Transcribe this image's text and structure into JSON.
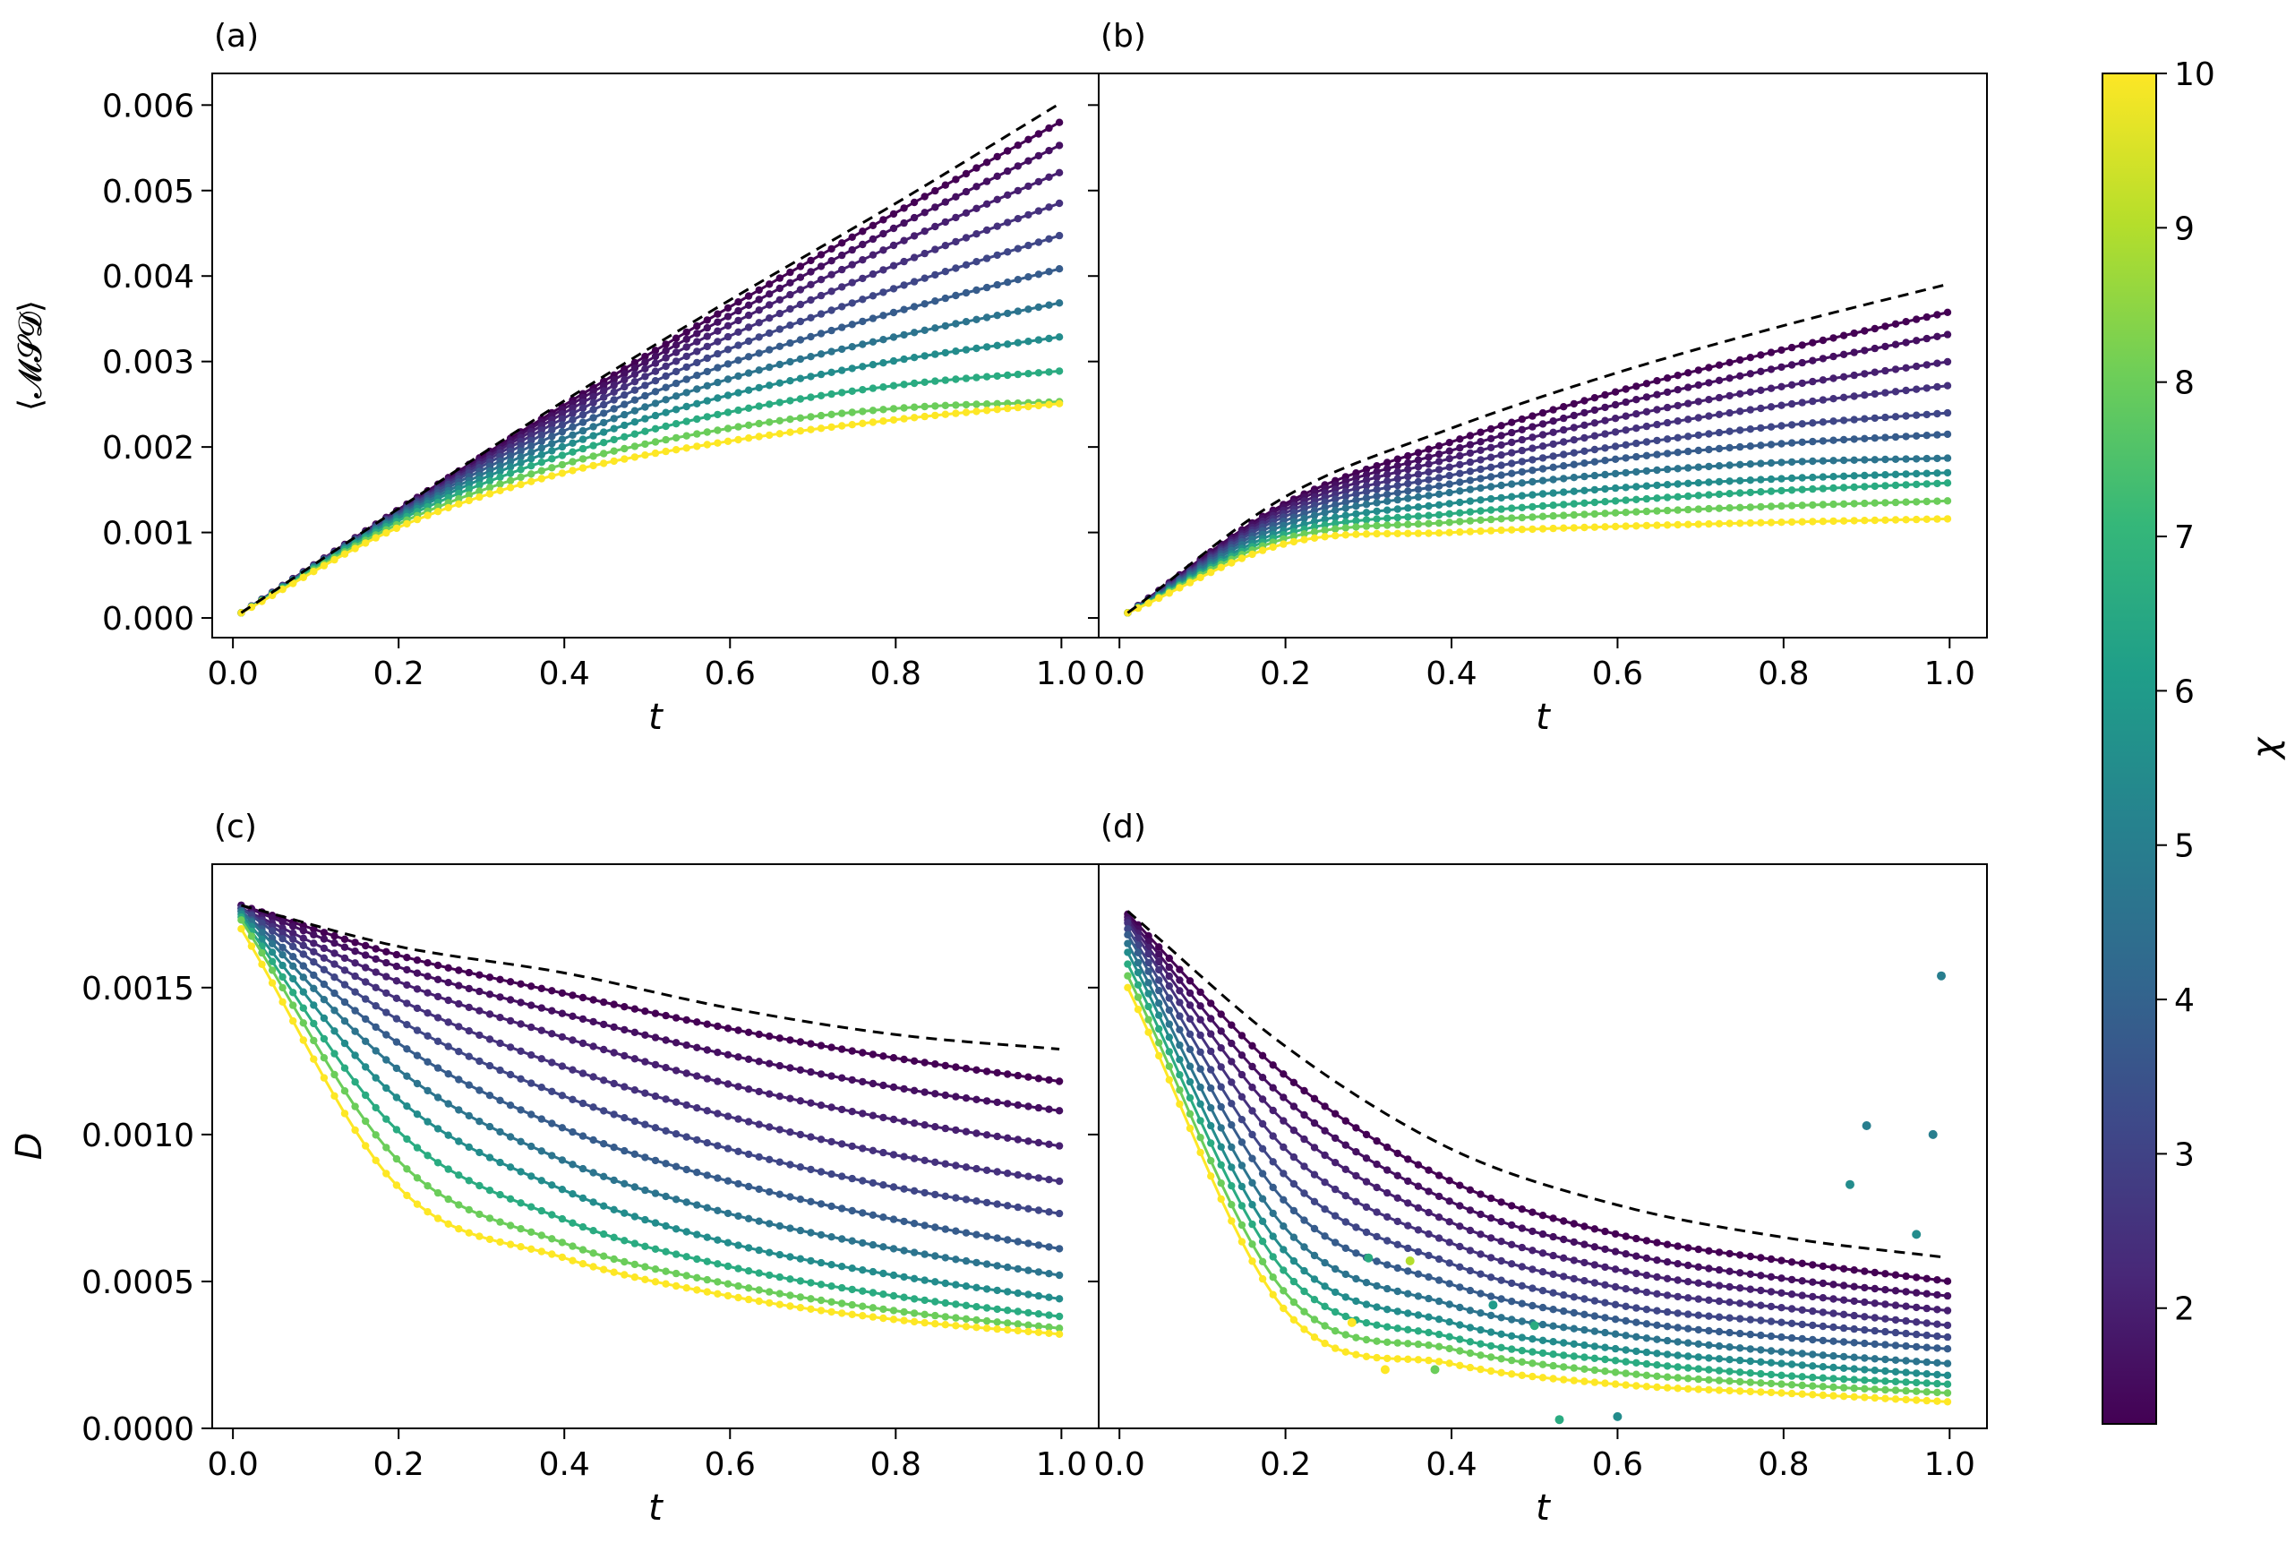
{
  "colors": {
    "viridis_stops": [
      "#440154",
      "#482878",
      "#3e4989",
      "#31688e",
      "#26828e",
      "#1f9e89",
      "#35b779",
      "#6ece58",
      "#b5de2b",
      "#fde725"
    ],
    "reference": "#000000"
  },
  "colorbar": {
    "label": "χ",
    "min": 1.25,
    "max": 10,
    "ticks": [
      "2",
      "3",
      "4",
      "5",
      "6",
      "7",
      "8",
      "9",
      "10"
    ],
    "tick_values": [
      2,
      3,
      4,
      5,
      6,
      7,
      8,
      9,
      10
    ]
  },
  "chi_values": [
    1.25,
    1.6,
    2.0,
    2.5,
    3.1,
    3.8,
    4.6,
    5.5,
    6.6,
    8.0,
    10.0
  ],
  "chart_data": [
    {
      "id": "a",
      "panel_label": "(a)",
      "type": "line",
      "xlabel": "t",
      "ylabel": "⟨𝓜𝓢𝓓⟩",
      "xlim": [
        -0.025,
        1.045
      ],
      "ylim": [
        -0.00023,
        0.00637
      ],
      "xticks": [
        "0.0",
        "0.2",
        "0.4",
        "0.6",
        "0.8",
        "1.0"
      ],
      "xtick_values": [
        0,
        0.2,
        0.4,
        0.6,
        0.8,
        1.0
      ],
      "yticks": [
        "0.000",
        "0.001",
        "0.002",
        "0.003",
        "0.004",
        "0.005",
        "0.006"
      ],
      "ytick_values": [
        0,
        0.001,
        0.002,
        0.003,
        0.004,
        0.005,
        0.006
      ],
      "x": [
        0.01,
        0.2,
        0.4,
        0.6,
        0.8,
        1.0
      ],
      "reference_line": [
        6e-05,
        0.00128,
        0.00254,
        0.00372,
        0.00485,
        0.00603
      ],
      "series": [
        {
          "chi": 1.25,
          "values": [
            6e-05,
            0.00127,
            0.00249,
            0.00364,
            0.00474,
            0.00581
          ]
        },
        {
          "chi": 1.6,
          "values": [
            6e-05,
            0.00126,
            0.00245,
            0.00354,
            0.00457,
            0.00554
          ]
        },
        {
          "chi": 2.0,
          "values": [
            6e-05,
            0.00125,
            0.0024,
            0.00343,
            0.00437,
            0.00522
          ]
        },
        {
          "chi": 2.5,
          "values": [
            6e-05,
            0.00124,
            0.00234,
            0.0033,
            0.00413,
            0.00486
          ]
        },
        {
          "chi": 3.1,
          "values": [
            6e-05,
            0.00123,
            0.00227,
            0.00315,
            0.00386,
            0.00448
          ]
        },
        {
          "chi": 3.8,
          "values": [
            6e-05,
            0.00121,
            0.00219,
            0.00298,
            0.00358,
            0.00409
          ]
        },
        {
          "chi": 4.6,
          "values": [
            6e-05,
            0.00119,
            0.0021,
            0.0028,
            0.00329,
            0.00369
          ]
        },
        {
          "chi": 5.5,
          "values": [
            6e-05,
            0.00117,
            0.00201,
            0.00261,
            0.00301,
            0.00329
          ]
        },
        {
          "chi": 6.6,
          "values": [
            6e-05,
            0.00114,
            0.00191,
            0.00241,
            0.00272,
            0.00289
          ]
        },
        {
          "chi": 8.0,
          "values": [
            6e-05,
            0.0011,
            0.0018,
            0.00222,
            0.00245,
            0.00253
          ]
        },
        {
          "chi": 10.0,
          "values": [
            6e-05,
            0.00106,
            0.0017,
            0.00207,
            0.00232,
            0.00251
          ]
        }
      ]
    },
    {
      "id": "b",
      "panel_label": "(b)",
      "type": "line",
      "xlabel": "t",
      "ylabel": "",
      "xlim": [
        -0.025,
        1.045
      ],
      "ylim": [
        -0.00023,
        0.00637
      ],
      "xticks": [
        "0.0",
        "0.2",
        "0.4",
        "0.6",
        "0.8",
        "1.0"
      ],
      "xtick_values": [
        0,
        0.2,
        0.4,
        0.6,
        0.8,
        1.0
      ],
      "yticks": [],
      "ytick_values": [],
      "x": [
        0.01,
        0.2,
        0.4,
        0.6,
        0.8,
        1.0
      ],
      "reference_line": [
        6e-05,
        0.00142,
        0.00222,
        0.00287,
        0.00342,
        0.00391
      ],
      "series": [
        {
          "chi": 1.25,
          "values": [
            6e-05,
            0.00134,
            0.00206,
            0.00265,
            0.00314,
            0.00358
          ]
        },
        {
          "chi": 1.6,
          "values": [
            6e-05,
            0.00131,
            0.00196,
            0.0025,
            0.00294,
            0.00332
          ]
        },
        {
          "chi": 2.0,
          "values": [
            6e-05,
            0.00127,
            0.00187,
            0.00234,
            0.00271,
            0.003
          ]
        },
        {
          "chi": 2.5,
          "values": [
            6e-05,
            0.00123,
            0.00177,
            0.00218,
            0.00249,
            0.00272
          ]
        },
        {
          "chi": 3.1,
          "values": [
            6e-05,
            0.00119,
            0.00167,
            0.00201,
            0.00225,
            0.0024
          ]
        },
        {
          "chi": 3.8,
          "values": [
            6e-05,
            0.00114,
            0.00157,
            0.00186,
            0.00204,
            0.00215
          ]
        },
        {
          "chi": 4.6,
          "values": [
            6e-05,
            0.00109,
            0.00147,
            0.00169,
            0.00182,
            0.00187
          ]
        },
        {
          "chi": 5.5,
          "values": [
            6e-05,
            0.00103,
            0.00134,
            0.00152,
            0.00163,
            0.0017
          ]
        },
        {
          "chi": 6.6,
          "values": [
            6e-05,
            0.00098,
            0.00122,
            0.00137,
            0.00149,
            0.00158
          ]
        },
        {
          "chi": 8.0,
          "values": [
            6e-05,
            0.00093,
            0.00112,
            0.00123,
            0.00131,
            0.00137
          ]
        },
        {
          "chi": 10.0,
          "values": [
            6e-05,
            0.00087,
            0.001,
            0.00107,
            0.00112,
            0.00116
          ]
        }
      ]
    },
    {
      "id": "c",
      "panel_label": "(c)",
      "type": "line",
      "xlabel": "t",
      "ylabel": "D",
      "xlim": [
        -0.025,
        1.045
      ],
      "ylim": [
        0,
        0.00192
      ],
      "xticks": [
        "0.0",
        "0.2",
        "0.4",
        "0.6",
        "0.8",
        "1.0"
      ],
      "xtick_values": [
        0,
        0.2,
        0.4,
        0.6,
        0.8,
        1.0
      ],
      "yticks": [
        "0.0000",
        "0.0005",
        "0.0010",
        "0.0015"
      ],
      "ytick_values": [
        0,
        0.0005,
        0.001,
        0.0015
      ],
      "x": [
        0.01,
        0.2,
        0.4,
        0.6,
        0.8,
        1.0
      ],
      "reference_line": [
        0.00178,
        0.00164,
        0.00155,
        0.00143,
        0.00134,
        0.00129
      ],
      "series": [
        {
          "chi": 1.25,
          "values": [
            0.00178,
            0.00161,
            0.00148,
            0.00136,
            0.00126,
            0.00118
          ]
        },
        {
          "chi": 1.6,
          "values": [
            0.00178,
            0.00157,
            0.00141,
            0.00127,
            0.00116,
            0.00108
          ]
        },
        {
          "chi": 2.0,
          "values": [
            0.00177,
            0.00152,
            0.00133,
            0.00117,
            0.00105,
            0.00096
          ]
        },
        {
          "chi": 2.5,
          "values": [
            0.00177,
            0.00146,
            0.00123,
            0.00106,
            0.00093,
            0.00084
          ]
        },
        {
          "chi": 3.1,
          "values": [
            0.00177,
            0.00139,
            0.00113,
            0.00095,
            0.00082,
            0.00073
          ]
        },
        {
          "chi": 3.8,
          "values": [
            0.00176,
            0.00131,
            0.00102,
            0.00084,
            0.00071,
            0.00061
          ]
        },
        {
          "chi": 4.6,
          "values": [
            0.00176,
            0.00122,
            0.00091,
            0.00073,
            0.00061,
            0.00052
          ]
        },
        {
          "chi": 5.5,
          "values": [
            0.00175,
            0.00112,
            0.00081,
            0.00063,
            0.00052,
            0.00044
          ]
        },
        {
          "chi": 6.6,
          "values": [
            0.00174,
            0.00101,
            0.00071,
            0.00055,
            0.00045,
            0.00038
          ]
        },
        {
          "chi": 8.0,
          "values": [
            0.00173,
            0.00091,
            0.00063,
            0.00049,
            0.0004,
            0.00034
          ]
        },
        {
          "chi": 10.0,
          "values": [
            0.0017,
            0.00082,
            0.00058,
            0.00045,
            0.00037,
            0.00032
          ]
        }
      ]
    },
    {
      "id": "d",
      "panel_label": "(d)",
      "type": "line",
      "xlabel": "t",
      "ylabel": "",
      "xlim": [
        -0.025,
        1.045
      ],
      "ylim": [
        0,
        0.00192
      ],
      "xticks": [
        "0.0",
        "0.2",
        "0.4",
        "0.6",
        "0.8",
        "1.0"
      ],
      "xtick_values": [
        0,
        0.2,
        0.4,
        0.6,
        0.8,
        1.0
      ],
      "yticks": [],
      "ytick_values": [],
      "x": [
        0.01,
        0.2,
        0.4,
        0.6,
        0.8,
        1.0
      ],
      "reference_line": [
        0.00176,
        0.0013,
        0.00095,
        0.00076,
        0.00065,
        0.00058
      ],
      "series": [
        {
          "chi": 1.25,
          "values": [
            0.00175,
            0.0012,
            0.00084,
            0.00066,
            0.00057,
            0.0005
          ]
        },
        {
          "chi": 1.6,
          "values": [
            0.00174,
            0.00112,
            0.00077,
            0.0006,
            0.00051,
            0.00045
          ]
        },
        {
          "chi": 2.0,
          "values": [
            0.00173,
            0.00104,
            0.0007,
            0.00054,
            0.00046,
            0.0004
          ]
        },
        {
          "chi": 2.5,
          "values": [
            0.00172,
            0.00095,
            0.00063,
            0.00048,
            0.00041,
            0.00035
          ]
        },
        {
          "chi": 3.1,
          "values": [
            0.0017,
            0.00086,
            0.00056,
            0.00042,
            0.00036,
            0.00031
          ]
        },
        {
          "chi": 3.8,
          "values": [
            0.00168,
            0.00077,
            0.00049,
            0.00037,
            0.00031,
            0.00027
          ]
        },
        {
          "chi": 4.6,
          "values": [
            0.00165,
            0.00068,
            0.00042,
            0.00032,
            0.00026,
            0.00022
          ]
        },
        {
          "chi": 5.5,
          "values": [
            0.00162,
            0.0006,
            0.00036,
            0.00027,
            0.00022,
            0.00018
          ]
        },
        {
          "chi": 6.6,
          "values": [
            0.00158,
            0.00053,
            0.00031,
            0.00023,
            0.00018,
            0.00015
          ]
        },
        {
          "chi": 8.0,
          "values": [
            0.00154,
            0.00046,
            0.00027,
            0.00019,
            0.00015,
            0.00012
          ]
        },
        {
          "chi": 10.0,
          "values": [
            0.0015,
            0.0004,
            0.00022,
            0.00015,
            0.00012,
            9e-05
          ]
        }
      ],
      "outlier_points": [
        {
          "chi": 5.0,
          "x": 0.99,
          "y": 0.00154
        },
        {
          "chi": 5.0,
          "x": 0.9,
          "y": 0.00103
        },
        {
          "chi": 5.0,
          "x": 0.98,
          "y": 0.001
        },
        {
          "chi": 5.5,
          "x": 0.88,
          "y": 0.00083
        },
        {
          "chi": 5.5,
          "x": 0.96,
          "y": 0.00066
        },
        {
          "chi": 6.6,
          "x": 0.3,
          "y": 0.00058
        },
        {
          "chi": 9.0,
          "x": 0.35,
          "y": 0.00057
        },
        {
          "chi": 10.0,
          "x": 0.28,
          "y": 0.00036
        },
        {
          "chi": 10.0,
          "x": 0.32,
          "y": 0.0002
        },
        {
          "chi": 8.0,
          "x": 0.38,
          "y": 0.0002
        },
        {
          "chi": 6.6,
          "x": 0.53,
          "y": 3e-05
        },
        {
          "chi": 5.5,
          "x": 0.6,
          "y": 4e-05
        },
        {
          "chi": 6.0,
          "x": 0.45,
          "y": 0.00042
        },
        {
          "chi": 6.6,
          "x": 0.5,
          "y": 0.00035
        }
      ]
    }
  ]
}
